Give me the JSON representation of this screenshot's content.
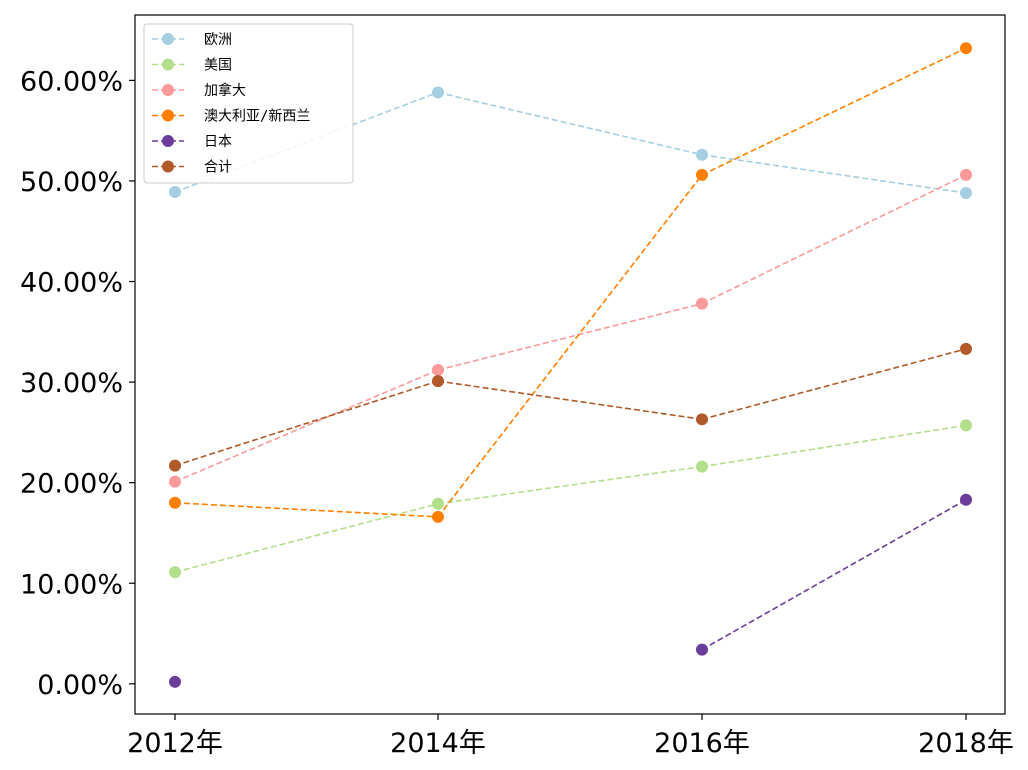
{
  "chart_data": {
    "type": "line",
    "categories": [
      "2012年",
      "2014年",
      "2016年",
      "2018年"
    ],
    "y_tick_labels": [
      "0.00%",
      "10.00%",
      "20.00%",
      "30.00%",
      "40.00%",
      "50.00%",
      "60.00%"
    ],
    "y_ticks": [
      0,
      10,
      20,
      30,
      40,
      50,
      60
    ],
    "ylim": [
      -3,
      66.5
    ],
    "grid": false,
    "legend_position": "top-left",
    "line_style": "dashed",
    "series": [
      {
        "name": "欧洲",
        "color": "#a6cee3",
        "values": [
          48.9,
          58.8,
          52.6,
          48.8
        ]
      },
      {
        "name": "美国",
        "color": "#b2df8a",
        "values": [
          11.1,
          17.9,
          21.6,
          25.7
        ]
      },
      {
        "name": "加拿大",
        "color": "#fb9a99",
        "values": [
          20.1,
          31.2,
          37.8,
          50.6
        ]
      },
      {
        "name": "澳大利亚/新西兰",
        "color": "#ff7f00",
        "values": [
          18.0,
          16.6,
          50.6,
          63.2
        ]
      },
      {
        "name": "日本",
        "color": "#6a3d9a",
        "values": [
          0.2,
          null,
          3.4,
          18.3
        ]
      },
      {
        "name": "合计",
        "color": "#b15928",
        "values": [
          21.7,
          30.1,
          26.3,
          33.3
        ]
      }
    ]
  }
}
